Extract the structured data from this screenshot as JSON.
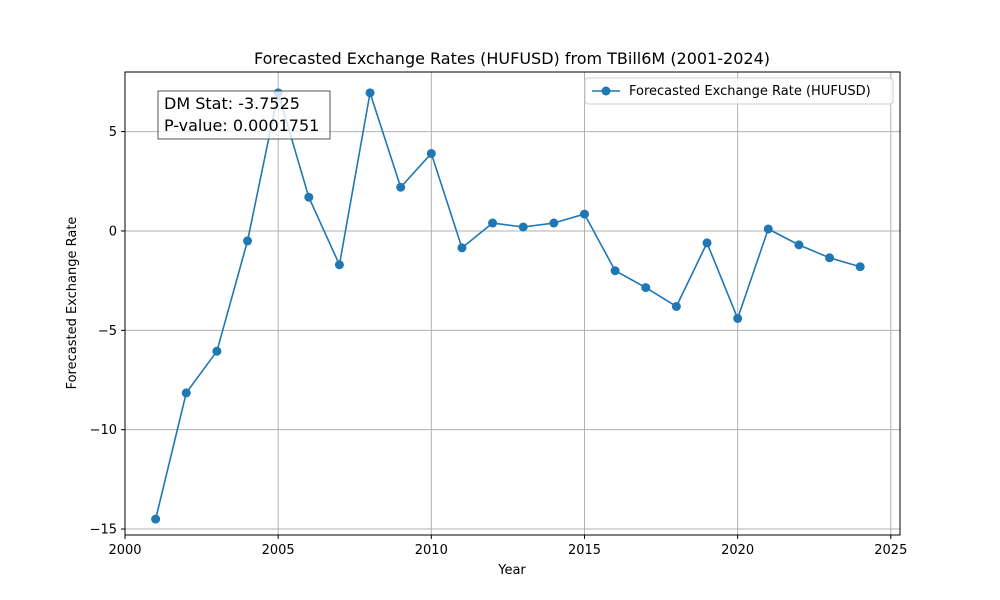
{
  "chart_data": {
    "type": "line",
    "title": "Forecasted Exchange Rates (HUFUSD) from TBill6M (2001-2024)",
    "xlabel": "Year",
    "ylabel": "Forecasted Exchange Rate",
    "xlim": [
      2000,
      2025.3
    ],
    "ylim": [
      -15.3,
      8.0
    ],
    "xticks": [
      2000,
      2005,
      2010,
      2015,
      2020,
      2025
    ],
    "yticks": [
      -15,
      -10,
      -5,
      0,
      5
    ],
    "grid": true,
    "legend_position": "upper right",
    "series": [
      {
        "name": "Forecasted Exchange Rate (HUFUSD)",
        "color": "#1f77b4",
        "marker": "circle",
        "x": [
          2001,
          2002,
          2003,
          2004,
          2005,
          2006,
          2007,
          2008,
          2009,
          2010,
          2011,
          2012,
          2013,
          2014,
          2015,
          2016,
          2017,
          2018,
          2019,
          2020,
          2021,
          2022,
          2023,
          2024
        ],
        "y": [
          -14.5,
          -8.15,
          -6.05,
          -0.5,
          6.95,
          1.7,
          -1.7,
          6.95,
          2.2,
          3.9,
          -0.85,
          0.4,
          0.2,
          0.4,
          0.85,
          -2.0,
          -2.85,
          -3.8,
          -0.6,
          -4.4,
          0.1,
          -0.7,
          -1.35,
          -1.8
        ]
      }
    ],
    "annotation": {
      "lines": [
        "DM Stat: -3.7525",
        "P-value: 0.0001751"
      ]
    }
  }
}
